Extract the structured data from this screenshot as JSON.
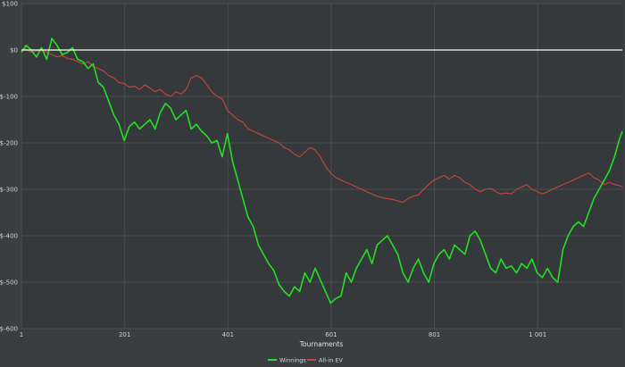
{
  "chart_data": {
    "type": "line",
    "title": "",
    "xlabel": "Tournaments",
    "ylabel": "",
    "xlim": [
      1,
      1165
    ],
    "ylim": [
      -600,
      100
    ],
    "y_ticks": [
      100,
      0,
      -100,
      -200,
      -300,
      -400,
      -500,
      -600
    ],
    "y_tick_labels": [
      "$100",
      "$0",
      "$-100",
      "$-200",
      "$-300",
      "$-400",
      "$-500",
      "$-600"
    ],
    "x_ticks": [
      1,
      201,
      401,
      601,
      801,
      1001
    ],
    "x_tick_labels": [
      "1",
      "201",
      "401",
      "601",
      "801",
      "1 001"
    ],
    "grid": true,
    "zero_line": true,
    "legend_position": "bottom-center",
    "colors": {
      "background": "#3b3e41",
      "grid": "#4a4d51",
      "zero_line": "#ffffff",
      "winnings": "#22e022",
      "allin_ev": "#c9463d"
    },
    "series": [
      {
        "name": "Winnings",
        "color": "#22e022",
        "x": [
          1,
          10,
          20,
          30,
          40,
          50,
          60,
          70,
          80,
          90,
          100,
          110,
          120,
          130,
          140,
          150,
          160,
          170,
          180,
          190,
          200,
          210,
          220,
          230,
          240,
          250,
          260,
          270,
          280,
          290,
          300,
          310,
          320,
          330,
          340,
          350,
          360,
          370,
          380,
          390,
          400,
          410,
          420,
          430,
          440,
          450,
          460,
          470,
          480,
          490,
          500,
          510,
          520,
          530,
          540,
          550,
          560,
          570,
          580,
          590,
          600,
          610,
          620,
          630,
          640,
          650,
          660,
          670,
          680,
          690,
          700,
          710,
          720,
          730,
          740,
          750,
          760,
          770,
          780,
          790,
          800,
          810,
          820,
          830,
          840,
          850,
          860,
          870,
          880,
          890,
          900,
          910,
          920,
          930,
          940,
          950,
          960,
          970,
          980,
          990,
          1000,
          1010,
          1020,
          1030,
          1040,
          1050,
          1060,
          1070,
          1080,
          1090,
          1100,
          1110,
          1120,
          1130,
          1140,
          1150,
          1160,
          1165
        ],
        "y": [
          -5,
          10,
          0,
          -15,
          5,
          -20,
          25,
          10,
          -10,
          -5,
          5,
          -20,
          -25,
          -40,
          -30,
          -70,
          -80,
          -110,
          -140,
          -160,
          -195,
          -165,
          -155,
          -170,
          -160,
          -150,
          -170,
          -135,
          -115,
          -125,
          -150,
          -140,
          -130,
          -170,
          -160,
          -175,
          -185,
          -200,
          -195,
          -230,
          -180,
          -240,
          -280,
          -320,
          -360,
          -380,
          -420,
          -440,
          -460,
          -475,
          -505,
          -520,
          -530,
          -510,
          -520,
          -480,
          -500,
          -470,
          -495,
          -520,
          -545,
          -535,
          -530,
          -480,
          -500,
          -470,
          -450,
          -430,
          -460,
          -420,
          -410,
          -400,
          -420,
          -440,
          -480,
          -500,
          -470,
          -450,
          -480,
          -500,
          -460,
          -440,
          -430,
          -450,
          -420,
          -430,
          -440,
          -400,
          -390,
          -410,
          -440,
          -470,
          -480,
          -450,
          -470,
          -465,
          -480,
          -460,
          -470,
          -450,
          -480,
          -490,
          -470,
          -490,
          -500,
          -430,
          -400,
          -380,
          -370,
          -380,
          -350,
          -320,
          -300,
          -280,
          -260,
          -230,
          -190,
          -175
        ]
      },
      {
        "name": "All-in EV",
        "color": "#c9463d",
        "x": [
          1,
          10,
          20,
          30,
          40,
          50,
          60,
          70,
          80,
          90,
          100,
          110,
          120,
          130,
          140,
          150,
          160,
          170,
          180,
          190,
          200,
          210,
          220,
          230,
          240,
          250,
          260,
          270,
          280,
          290,
          300,
          310,
          320,
          330,
          340,
          350,
          360,
          370,
          380,
          390,
          400,
          410,
          420,
          430,
          440,
          450,
          460,
          470,
          480,
          490,
          500,
          510,
          520,
          530,
          540,
          550,
          560,
          570,
          580,
          590,
          600,
          610,
          620,
          630,
          640,
          650,
          660,
          670,
          680,
          690,
          700,
          710,
          720,
          730,
          740,
          750,
          760,
          770,
          780,
          790,
          800,
          810,
          820,
          830,
          840,
          850,
          860,
          870,
          880,
          890,
          900,
          910,
          920,
          930,
          940,
          950,
          960,
          970,
          980,
          990,
          1000,
          1010,
          1020,
          1030,
          1040,
          1050,
          1060,
          1070,
          1080,
          1090,
          1100,
          1110,
          1120,
          1130,
          1140,
          1150,
          1160,
          1165
        ],
        "y": [
          0,
          2,
          -5,
          -2,
          0,
          -5,
          -10,
          -15,
          -12,
          -18,
          -20,
          -25,
          -30,
          -25,
          -35,
          -40,
          -45,
          -55,
          -60,
          -70,
          -72,
          -80,
          -78,
          -85,
          -75,
          -82,
          -90,
          -85,
          -95,
          -100,
          -90,
          -95,
          -85,
          -60,
          -55,
          -60,
          -75,
          -90,
          -100,
          -105,
          -130,
          -140,
          -150,
          -155,
          -170,
          -175,
          -180,
          -185,
          -190,
          -195,
          -200,
          -210,
          -215,
          -225,
          -230,
          -220,
          -210,
          -215,
          -230,
          -250,
          -265,
          -275,
          -280,
          -285,
          -290,
          -295,
          -300,
          -305,
          -310,
          -315,
          -318,
          -320,
          -322,
          -325,
          -328,
          -320,
          -315,
          -312,
          -300,
          -290,
          -280,
          -275,
          -270,
          -278,
          -270,
          -275,
          -285,
          -290,
          -300,
          -305,
          -300,
          -298,
          -305,
          -310,
          -308,
          -310,
          -300,
          -295,
          -290,
          -300,
          -305,
          -310,
          -305,
          -300,
          -295,
          -290,
          -285,
          -280,
          -275,
          -270,
          -265,
          -275,
          -280,
          -290,
          -285,
          -290,
          -292,
          -295
        ]
      }
    ]
  }
}
